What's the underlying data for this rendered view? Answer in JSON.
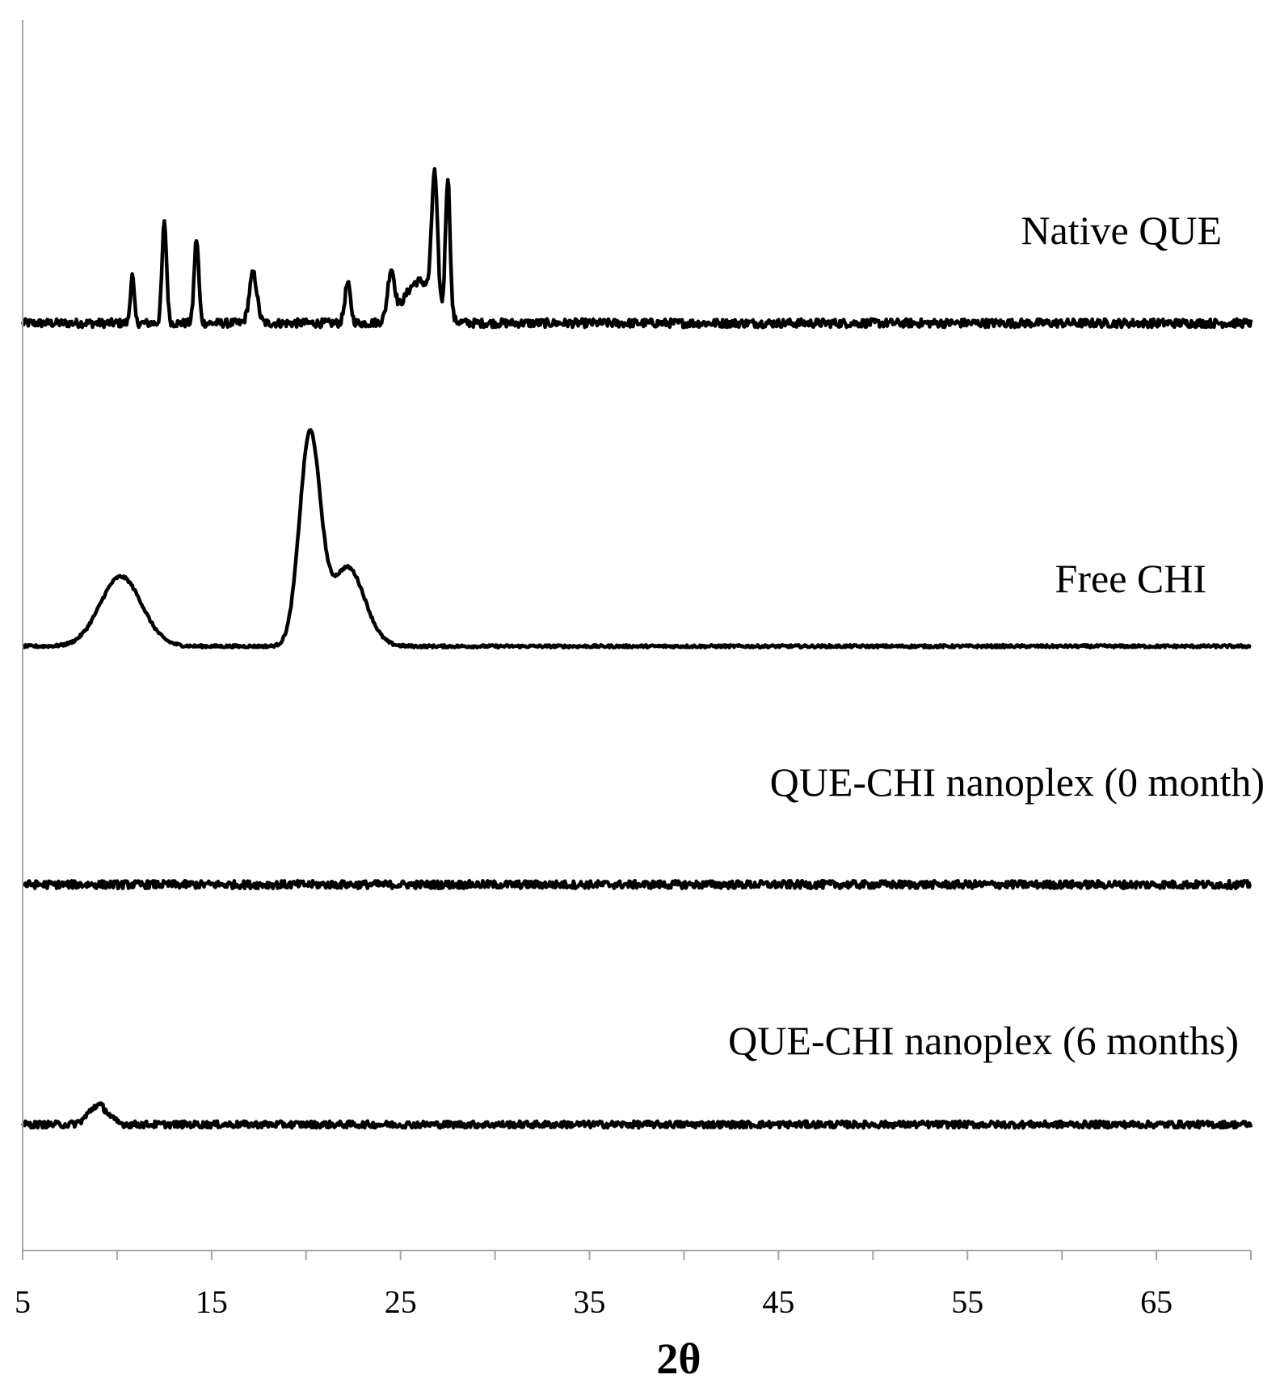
{
  "chart_data": {
    "type": "line",
    "xlabel": "2θ",
    "ylabel": "",
    "xlim": [
      5,
      70
    ],
    "xticks": [
      5,
      15,
      25,
      35,
      45,
      55,
      65
    ],
    "grid": false,
    "legend": "none",
    "series": [
      {
        "name": "Native QUE",
        "baseline": 0,
        "noise": 0.08,
        "peaks": [
          {
            "x": 12.5,
            "h": 1.9,
            "w": 0.12
          },
          {
            "x": 14.2,
            "h": 1.6,
            "w": 0.12
          },
          {
            "x": 10.8,
            "h": 0.9,
            "w": 0.1
          },
          {
            "x": 17.2,
            "h": 0.95,
            "w": 0.2
          },
          {
            "x": 22.2,
            "h": 0.75,
            "w": 0.15
          },
          {
            "x": 24.5,
            "h": 0.9,
            "w": 0.18
          },
          {
            "x": 26.8,
            "h": 2.4,
            "w": 0.15
          },
          {
            "x": 27.5,
            "h": 2.65,
            "w": 0.12
          },
          {
            "x": 26.0,
            "h": 0.8,
            "w": 0.8
          }
        ]
      },
      {
        "name": "Free CHI",
        "baseline": 0,
        "noise": 0.015,
        "peaks": [
          {
            "x": 10.2,
            "h": 0.75,
            "w": 1.1
          },
          {
            "x": 20.2,
            "h": 2.25,
            "w": 0.55
          },
          {
            "x": 22.2,
            "h": 0.85,
            "w": 0.9
          }
        ]
      },
      {
        "name": "QUE-CHI nanoplex  (0 month)",
        "baseline": 0,
        "noise": 0.08,
        "peaks": []
      },
      {
        "name": "QUE-CHI nanoplex (6 months)",
        "baseline": 0,
        "noise": 0.07,
        "peaks": [
          {
            "x": 9.0,
            "h": 0.4,
            "w": 0.5
          }
        ]
      }
    ]
  }
}
